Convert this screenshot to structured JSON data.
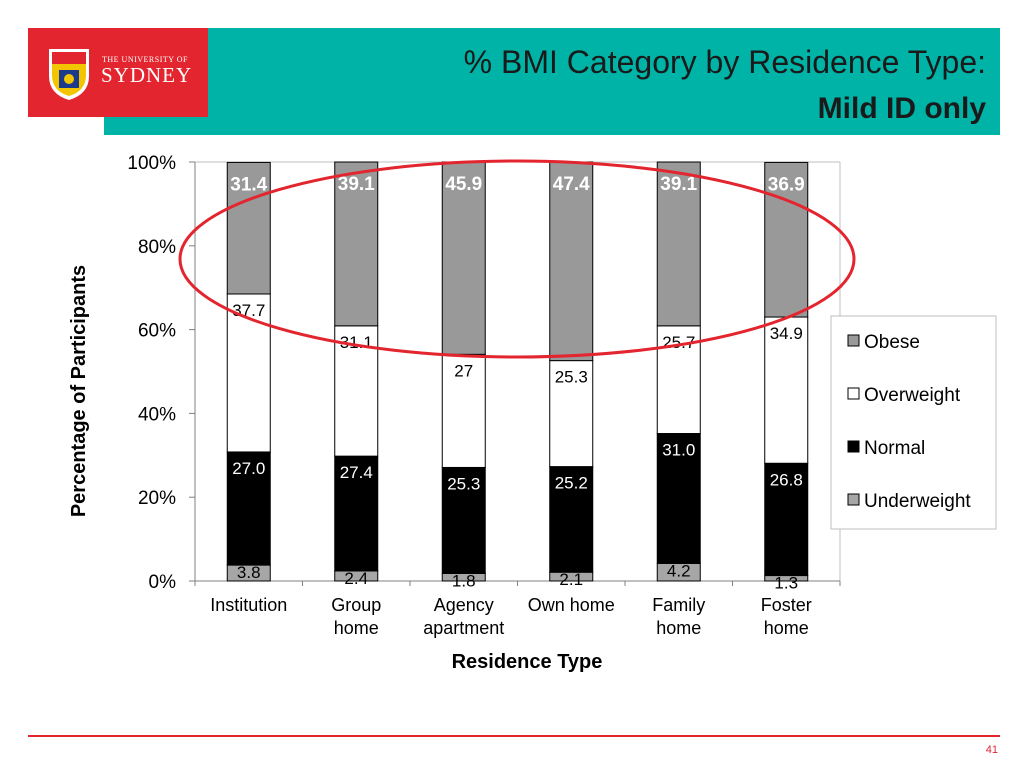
{
  "slide": {
    "title_line1": "% BMI Category by Residence Type:",
    "title_line2": "Mild ID only",
    "page_number": "41",
    "logo_line1": "THE UNIVERSITY OF",
    "logo_line2": "SYDNEY"
  },
  "chart_data": {
    "type": "bar",
    "stacked": true,
    "categories": [
      "Institution",
      "Group home",
      "Agency apartment",
      "Own home",
      "Family home",
      "Foster home"
    ],
    "category_lines": [
      [
        "Institution"
      ],
      [
        "Group",
        "home"
      ],
      [
        "Agency",
        "apartment"
      ],
      [
        "Own home"
      ],
      [
        "Family",
        "home"
      ],
      [
        "Foster",
        "home"
      ]
    ],
    "series": [
      {
        "name": "Underweight",
        "color": "#a6a6a6",
        "values": [
          3.8,
          2.4,
          1.8,
          2.1,
          4.2,
          1.3
        ],
        "labels": [
          "3.8",
          "2.4",
          "1.8",
          "2.1",
          "4.2",
          "1.3"
        ],
        "label_color": "#000000",
        "label_bold": false
      },
      {
        "name": "Normal",
        "color": "#000000",
        "values": [
          27.0,
          27.4,
          25.3,
          25.2,
          31.0,
          26.8
        ],
        "labels": [
          "27.0",
          "27.4",
          "25.3",
          "25.2",
          "31.0",
          "26.8"
        ],
        "label_color": "#ffffff",
        "label_bold": false
      },
      {
        "name": "Overweight",
        "color": "#ffffff",
        "values": [
          37.7,
          31.1,
          27,
          25.3,
          25.7,
          34.9
        ],
        "labels": [
          "37.7",
          "31.1",
          "27",
          "25.3",
          "25.7",
          "34.9"
        ],
        "label_color": "#000000",
        "label_bold": false
      },
      {
        "name": "Obese",
        "color": "#999999",
        "values": [
          31.4,
          39.1,
          45.9,
          47.4,
          39.1,
          36.9
        ],
        "labels": [
          "31.4",
          "39.1",
          "45.9",
          "47.4",
          "39.1",
          "36.9"
        ],
        "label_color": "#ffffff",
        "label_bold": true
      }
    ],
    "legend_order": [
      "Obese",
      "Overweight",
      "Normal",
      "Underweight"
    ],
    "legend_position": "right",
    "xlabel": "Residence Type",
    "ylabel": "Percentage of Participants",
    "yticks": [
      "0%",
      "20%",
      "40%",
      "60%",
      "80%",
      "100%"
    ],
    "ylim": [
      0,
      100
    ],
    "annotation": "red ellipse around Obese segments",
    "annotation_color": "#e2252e"
  }
}
